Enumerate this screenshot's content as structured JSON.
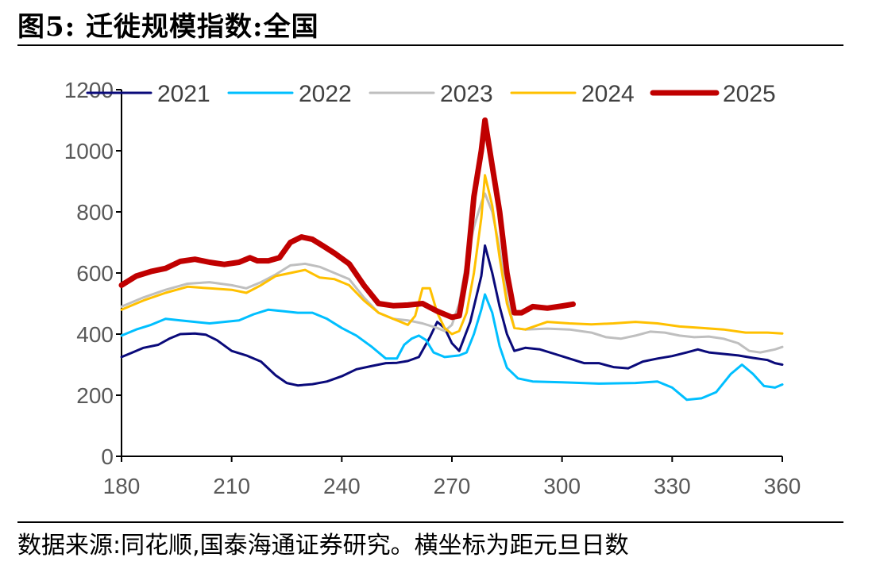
{
  "figure": {
    "title": "图5:  迁徙规模指数:全国",
    "source": "数据来源:同花顺,国泰海通证券研究。横坐标为距元旦日数"
  },
  "chart_data": {
    "type": "line",
    "title": "迁徙规模指数:全国",
    "xlabel": "",
    "ylabel": "",
    "xlim": [
      180,
      360
    ],
    "ylim": [
      0,
      1200
    ],
    "xticks": [
      180,
      210,
      240,
      270,
      300,
      330,
      360
    ],
    "yticks": [
      0,
      200,
      400,
      600,
      800,
      1000,
      1200
    ],
    "grid": false,
    "legend_position": "top",
    "series": [
      {
        "name": "2021",
        "color": "#0a0a7a",
        "width": 3,
        "points": [
          [
            180,
            325
          ],
          [
            183,
            340
          ],
          [
            186,
            355
          ],
          [
            190,
            365
          ],
          [
            193,
            385
          ],
          [
            196,
            400
          ],
          [
            200,
            402
          ],
          [
            203,
            398
          ],
          [
            206,
            380
          ],
          [
            210,
            345
          ],
          [
            214,
            330
          ],
          [
            218,
            310
          ],
          [
            222,
            265
          ],
          [
            225,
            240
          ],
          [
            228,
            232
          ],
          [
            232,
            236
          ],
          [
            236,
            245
          ],
          [
            240,
            262
          ],
          [
            244,
            285
          ],
          [
            248,
            295
          ],
          [
            252,
            305
          ],
          [
            255,
            306
          ],
          [
            258,
            312
          ],
          [
            261,
            325
          ],
          [
            264,
            390
          ],
          [
            266,
            440
          ],
          [
            268,
            420
          ],
          [
            270,
            370
          ],
          [
            272,
            345
          ],
          [
            275,
            440
          ],
          [
            278,
            590
          ],
          [
            279,
            690
          ],
          [
            281,
            600
          ],
          [
            283,
            490
          ],
          [
            285,
            400
          ],
          [
            287,
            345
          ],
          [
            290,
            355
          ],
          [
            294,
            350
          ],
          [
            298,
            335
          ],
          [
            302,
            320
          ],
          [
            306,
            305
          ],
          [
            310,
            305
          ],
          [
            314,
            292
          ],
          [
            318,
            288
          ],
          [
            322,
            310
          ],
          [
            326,
            320
          ],
          [
            330,
            328
          ],
          [
            334,
            340
          ],
          [
            337,
            350
          ],
          [
            340,
            340
          ],
          [
            344,
            335
          ],
          [
            348,
            330
          ],
          [
            352,
            322
          ],
          [
            356,
            315
          ],
          [
            358,
            305
          ],
          [
            360,
            300
          ]
        ]
      },
      {
        "name": "2022",
        "color": "#00bfff",
        "width": 3,
        "points": [
          [
            180,
            395
          ],
          [
            184,
            415
          ],
          [
            188,
            430
          ],
          [
            192,
            450
          ],
          [
            196,
            445
          ],
          [
            200,
            440
          ],
          [
            204,
            435
          ],
          [
            208,
            440
          ],
          [
            212,
            445
          ],
          [
            216,
            465
          ],
          [
            220,
            480
          ],
          [
            224,
            475
          ],
          [
            228,
            470
          ],
          [
            232,
            470
          ],
          [
            236,
            450
          ],
          [
            240,
            420
          ],
          [
            244,
            395
          ],
          [
            248,
            360
          ],
          [
            252,
            320
          ],
          [
            255,
            320
          ],
          [
            257,
            365
          ],
          [
            259,
            385
          ],
          [
            261,
            395
          ],
          [
            263,
            380
          ],
          [
            265,
            340
          ],
          [
            268,
            325
          ],
          [
            272,
            330
          ],
          [
            274,
            340
          ],
          [
            276,
            400
          ],
          [
            278,
            480
          ],
          [
            279,
            530
          ],
          [
            281,
            470
          ],
          [
            283,
            360
          ],
          [
            285,
            290
          ],
          [
            288,
            255
          ],
          [
            292,
            245
          ],
          [
            300,
            242
          ],
          [
            310,
            238
          ],
          [
            320,
            240
          ],
          [
            326,
            245
          ],
          [
            330,
            225
          ],
          [
            334,
            185
          ],
          [
            338,
            190
          ],
          [
            342,
            210
          ],
          [
            346,
            270
          ],
          [
            349,
            300
          ],
          [
            352,
            270
          ],
          [
            355,
            230
          ],
          [
            358,
            225
          ],
          [
            360,
            235
          ]
        ]
      },
      {
        "name": "2023",
        "color": "#bfbfbf",
        "width": 3,
        "points": [
          [
            180,
            490
          ],
          [
            186,
            520
          ],
          [
            192,
            545
          ],
          [
            198,
            565
          ],
          [
            204,
            570
          ],
          [
            210,
            560
          ],
          [
            214,
            550
          ],
          [
            218,
            570
          ],
          [
            222,
            595
          ],
          [
            226,
            625
          ],
          [
            230,
            630
          ],
          [
            234,
            620
          ],
          [
            238,
            600
          ],
          [
            242,
            580
          ],
          [
            246,
            520
          ],
          [
            250,
            470
          ],
          [
            254,
            450
          ],
          [
            258,
            445
          ],
          [
            262,
            435
          ],
          [
            266,
            420
          ],
          [
            268,
            410
          ],
          [
            270,
            430
          ],
          [
            272,
            500
          ],
          [
            274,
            640
          ],
          [
            276,
            750
          ],
          [
            278,
            830
          ],
          [
            279,
            860
          ],
          [
            281,
            800
          ],
          [
            283,
            680
          ],
          [
            285,
            520
          ],
          [
            287,
            420
          ],
          [
            290,
            415
          ],
          [
            296,
            418
          ],
          [
            302,
            415
          ],
          [
            308,
            405
          ],
          [
            312,
            390
          ],
          [
            316,
            385
          ],
          [
            320,
            395
          ],
          [
            324,
            408
          ],
          [
            328,
            405
          ],
          [
            332,
            395
          ],
          [
            336,
            390
          ],
          [
            340,
            392
          ],
          [
            344,
            385
          ],
          [
            348,
            370
          ],
          [
            351,
            345
          ],
          [
            354,
            340
          ],
          [
            358,
            350
          ],
          [
            360,
            358
          ]
        ]
      },
      {
        "name": "2024",
        "color": "#ffc000",
        "width": 3,
        "points": [
          [
            180,
            480
          ],
          [
            186,
            510
          ],
          [
            192,
            535
          ],
          [
            198,
            555
          ],
          [
            204,
            550
          ],
          [
            210,
            545
          ],
          [
            214,
            535
          ],
          [
            218,
            560
          ],
          [
            222,
            590
          ],
          [
            226,
            600
          ],
          [
            230,
            610
          ],
          [
            234,
            585
          ],
          [
            238,
            580
          ],
          [
            242,
            560
          ],
          [
            246,
            510
          ],
          [
            250,
            470
          ],
          [
            254,
            450
          ],
          [
            258,
            430
          ],
          [
            260,
            460
          ],
          [
            262,
            550
          ],
          [
            264,
            550
          ],
          [
            266,
            470
          ],
          [
            268,
            420
          ],
          [
            270,
            400
          ],
          [
            272,
            410
          ],
          [
            274,
            470
          ],
          [
            276,
            600
          ],
          [
            278,
            780
          ],
          [
            279,
            920
          ],
          [
            281,
            820
          ],
          [
            283,
            650
          ],
          [
            285,
            500
          ],
          [
            287,
            420
          ],
          [
            290,
            415
          ],
          [
            296,
            440
          ],
          [
            302,
            435
          ],
          [
            308,
            432
          ],
          [
            314,
            435
          ],
          [
            320,
            440
          ],
          [
            326,
            435
          ],
          [
            332,
            425
          ],
          [
            338,
            420
          ],
          [
            344,
            415
          ],
          [
            350,
            405
          ],
          [
            356,
            405
          ],
          [
            360,
            402
          ]
        ]
      },
      {
        "name": "2025",
        "color": "#c00000",
        "width": 7,
        "points": [
          [
            180,
            560
          ],
          [
            184,
            590
          ],
          [
            188,
            605
          ],
          [
            192,
            615
          ],
          [
            196,
            638
          ],
          [
            200,
            645
          ],
          [
            204,
            635
          ],
          [
            208,
            628
          ],
          [
            212,
            635
          ],
          [
            215,
            650
          ],
          [
            217,
            640
          ],
          [
            220,
            640
          ],
          [
            223,
            650
          ],
          [
            226,
            700
          ],
          [
            229,
            718
          ],
          [
            232,
            710
          ],
          [
            235,
            688
          ],
          [
            238,
            665
          ],
          [
            242,
            630
          ],
          [
            246,
            560
          ],
          [
            250,
            500
          ],
          [
            254,
            493
          ],
          [
            258,
            495
          ],
          [
            262,
            500
          ],
          [
            266,
            475
          ],
          [
            270,
            455
          ],
          [
            272,
            460
          ],
          [
            274,
            600
          ],
          [
            276,
            850
          ],
          [
            278,
            1000
          ],
          [
            279,
            1100
          ],
          [
            281,
            950
          ],
          [
            283,
            800
          ],
          [
            285,
            600
          ],
          [
            287,
            470
          ],
          [
            289,
            470
          ],
          [
            292,
            490
          ],
          [
            296,
            485
          ],
          [
            300,
            492
          ],
          [
            303,
            498
          ]
        ]
      }
    ]
  }
}
